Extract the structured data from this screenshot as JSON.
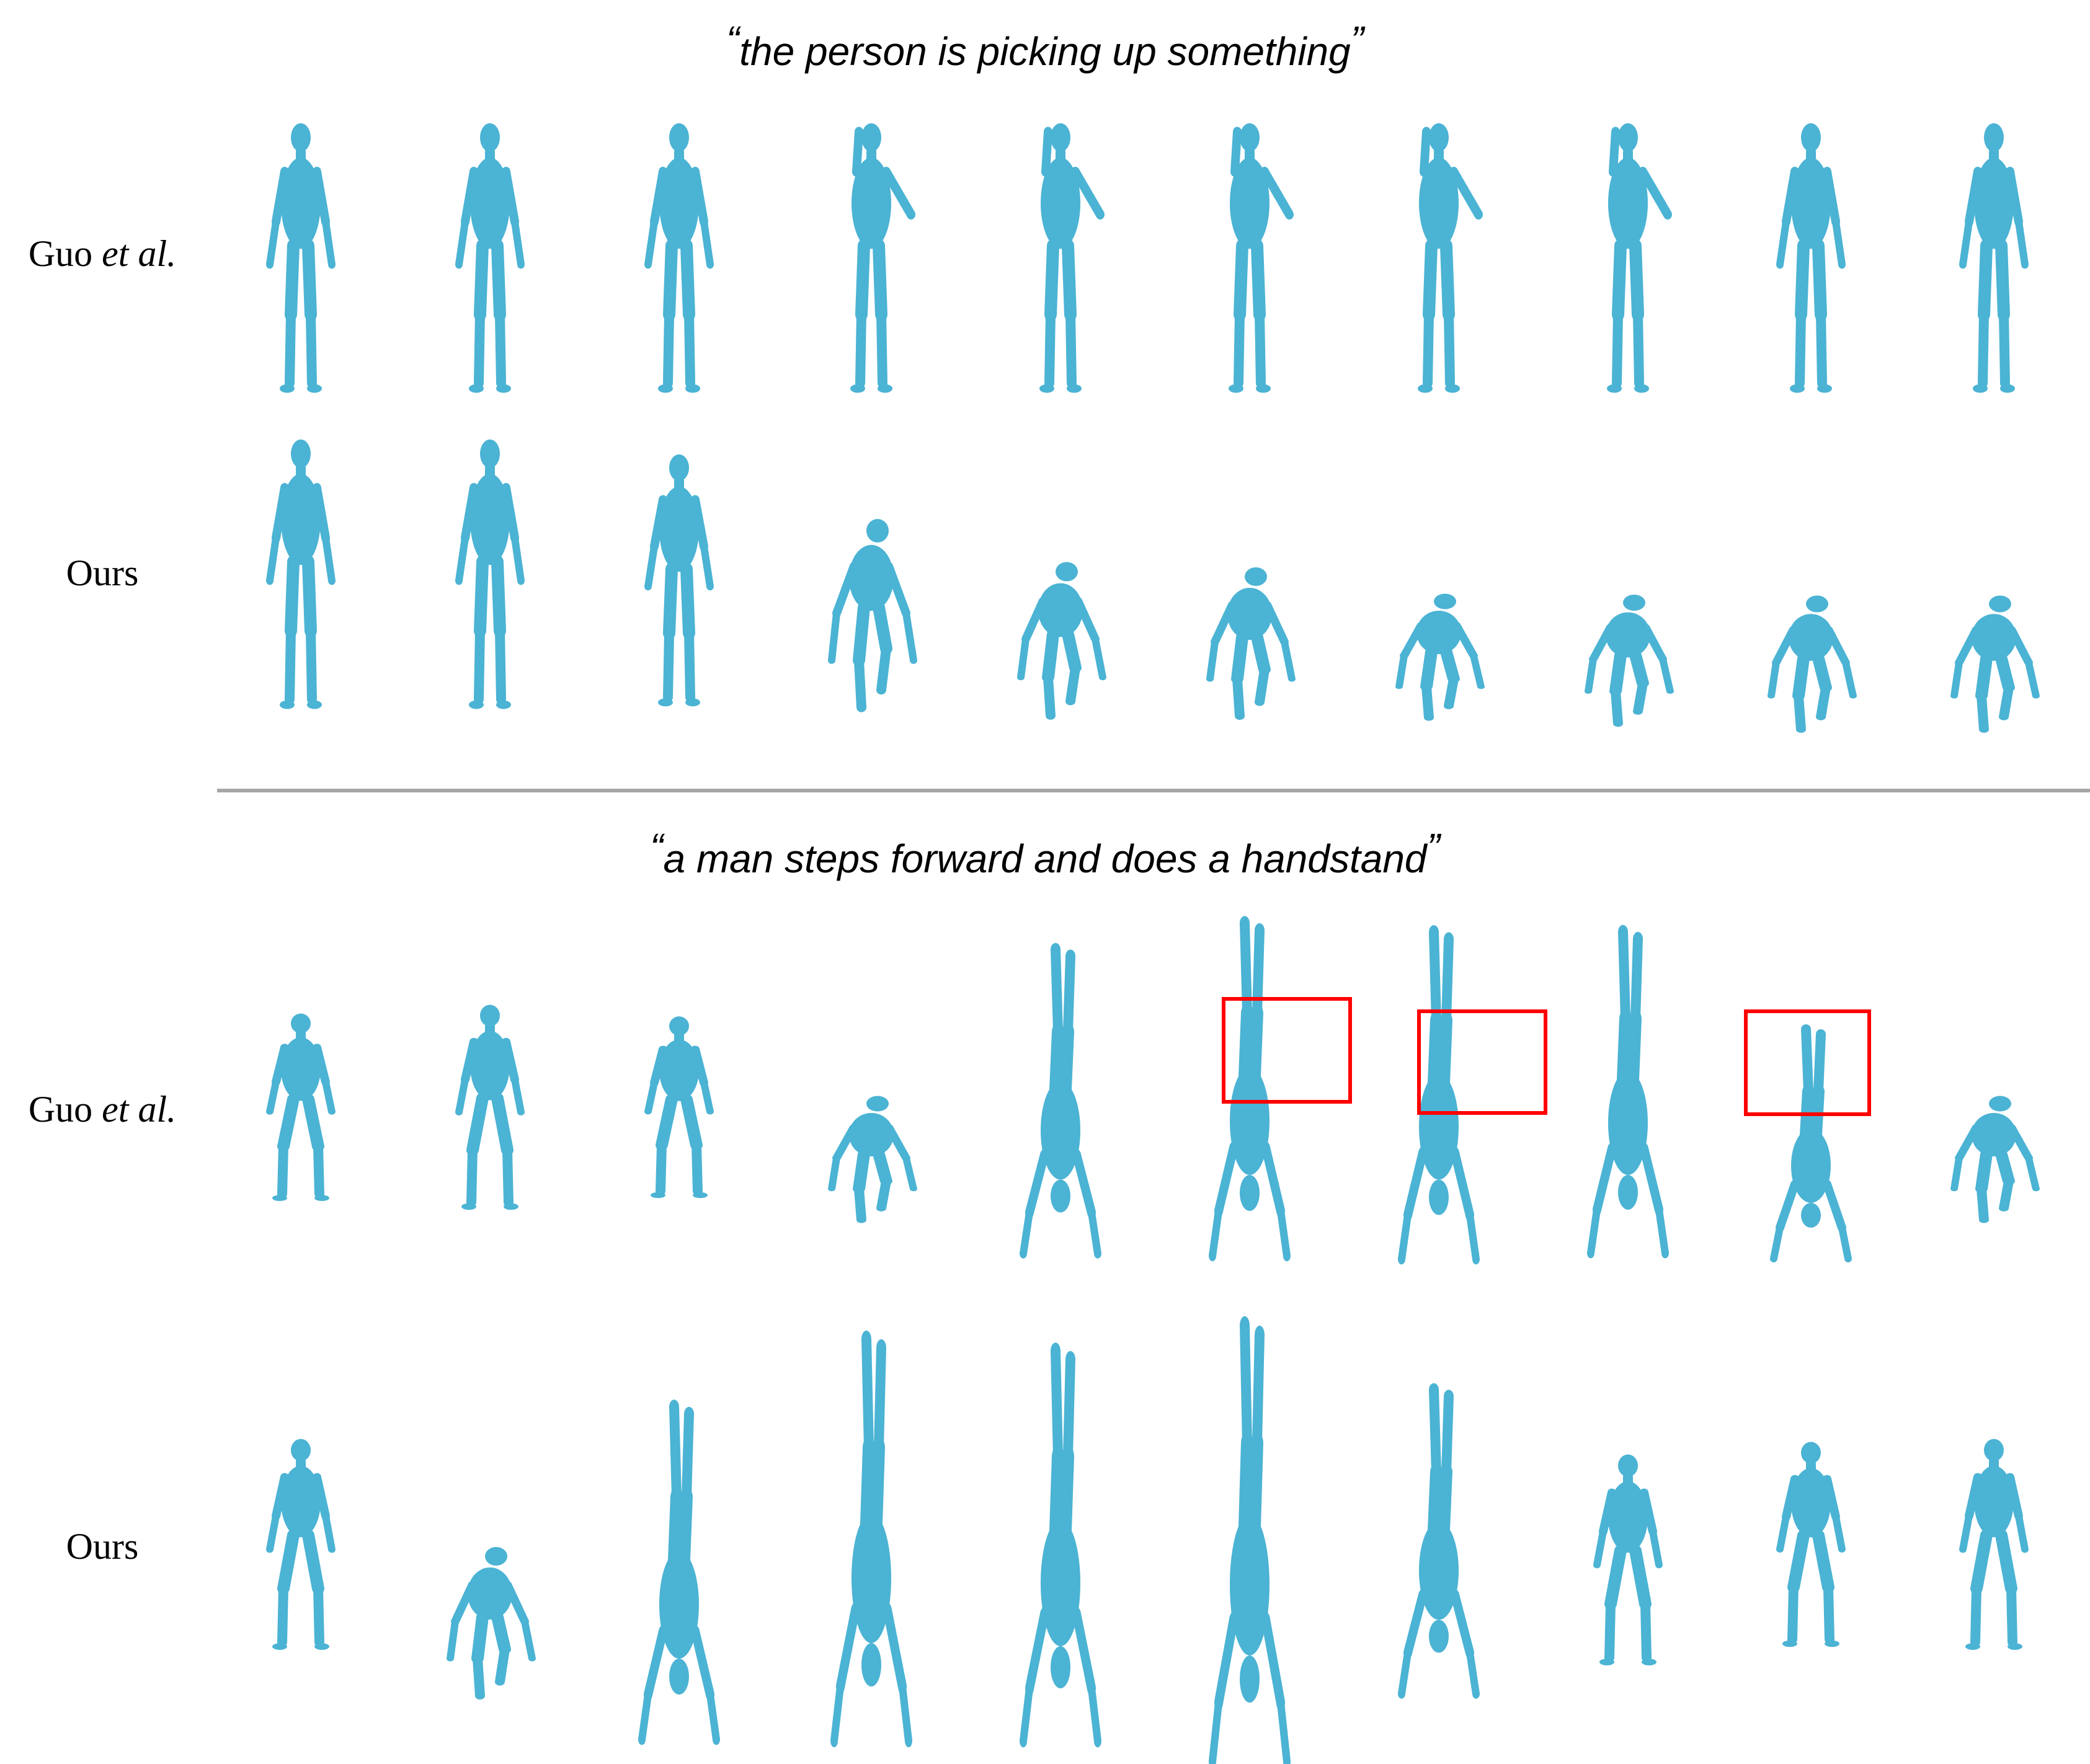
{
  "captions": {
    "top": "the person is picking up something",
    "bottom": "a man steps forward and does a handstand",
    "open_quote": "“",
    "close_quote": "”"
  },
  "row_labels": {
    "guo_name": "Guo",
    "guo_suffix": "et al.",
    "ours": "Ours"
  },
  "colors": {
    "figure_fill": "#4bb3d4",
    "figure_shade": "#2f8fb0",
    "highlight": "#ff0000",
    "divider": "#a6a6a6"
  },
  "figure_row_icons": [
    "human-mesh-icon"
  ]
}
